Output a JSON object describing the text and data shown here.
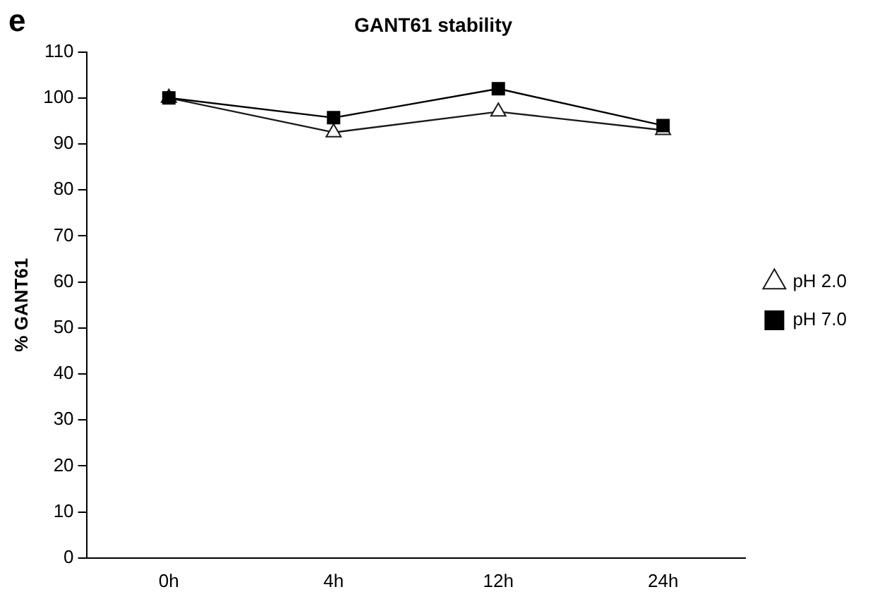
{
  "chart_data": {
    "type": "line",
    "title": "GANT61 stability",
    "ylabel": "% GANT61",
    "annotations": [
      "e"
    ],
    "categories": [
      "0h",
      "4h",
      "12h",
      "24h"
    ],
    "series": [
      {
        "name": "pH 2.0",
        "color": "#1a1a1a",
        "marker": "triangle",
        "values": [
          100,
          92.5,
          97,
          93
        ]
      },
      {
        "name": "pH 7.0",
        "color": "#000000",
        "marker": "square",
        "values": [
          100,
          95.7,
          102,
          94
        ]
      }
    ],
    "ylim": [
      0,
      110
    ],
    "yticks": [
      0,
      10,
      20,
      30,
      40,
      50,
      60,
      70,
      80,
      90,
      100,
      110
    ],
    "grid": false,
    "legend": "right",
    "line_style": "solid"
  }
}
